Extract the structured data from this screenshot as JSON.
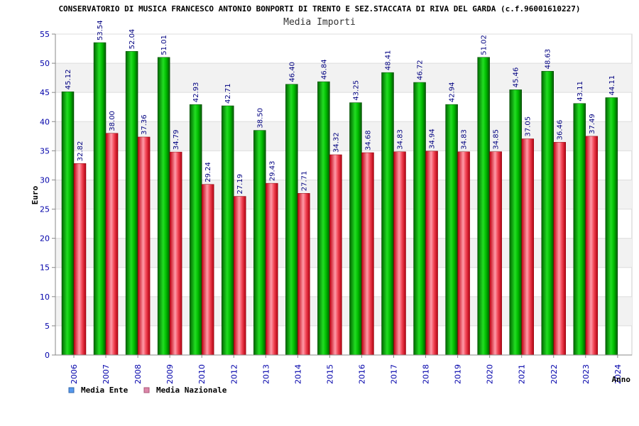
{
  "header": {
    "title": "CONSERVATORIO DI MUSICA FRANCESCO ANTONIO BONPORTI DI TRENTO E SEZ.STACCATA DI RIVA DEL GARDA (c.f.96001610227)",
    "subtitle": "Media Importi"
  },
  "colors": {
    "series_ente": "#00b000",
    "series_nazionale": "#e8202e",
    "legend_ente": "#5599ee",
    "legend_nazionale": "#dd88aa",
    "tick_text": "#0000aa",
    "band": "#f2f2f2"
  },
  "chart_data": {
    "type": "bar",
    "title": "Media Importi",
    "xlabel": "Anno",
    "ylabel": "Euro",
    "ylim": [
      0,
      55
    ],
    "yticks": [
      0,
      5,
      10,
      15,
      20,
      25,
      30,
      35,
      40,
      45,
      50,
      55
    ],
    "ytick_labels": [
      "0",
      "5",
      "10",
      "15",
      "20",
      "25",
      "30",
      "35",
      "40",
      "45",
      "50",
      "55"
    ],
    "grid": true,
    "legend_position": "bottom-left",
    "categories": [
      "2006",
      "2007",
      "2008",
      "2009",
      "2010",
      "2012",
      "2013",
      "2014",
      "2015",
      "2016",
      "2017",
      "2018",
      "2019",
      "2020",
      "2021",
      "2022",
      "2023",
      "2024"
    ],
    "series": [
      {
        "name": "Media Ente",
        "values": [
          45.12,
          53.54,
          52.04,
          51.01,
          42.93,
          42.71,
          38.5,
          46.4,
          46.84,
          43.25,
          48.41,
          46.72,
          42.94,
          51.02,
          45.46,
          48.63,
          43.11,
          44.11
        ],
        "labels": [
          "45.12",
          "53.54",
          "52.04",
          "51.01",
          "42.93",
          "42.71",
          "38.50",
          "46.40",
          "46.84",
          "43.25",
          "48.41",
          "46.72",
          "42.94",
          "51.02",
          "45.46",
          "48.63",
          "43.11",
          "44.11"
        ]
      },
      {
        "name": "Media Nazionale",
        "values": [
          32.82,
          38.0,
          37.36,
          34.79,
          29.24,
          27.19,
          29.43,
          27.71,
          34.32,
          34.68,
          34.83,
          34.94,
          34.83,
          34.85,
          37.05,
          36.46,
          37.49,
          null
        ],
        "labels": [
          "32.82",
          "38.00",
          "37.36",
          "34.79",
          "29.24",
          "27.19",
          "29.43",
          "27.71",
          "34.32",
          "34.68",
          "34.83",
          "34.94",
          "34.83",
          "34.85",
          "37.05",
          "36.46",
          "37.49",
          ""
        ]
      }
    ]
  }
}
